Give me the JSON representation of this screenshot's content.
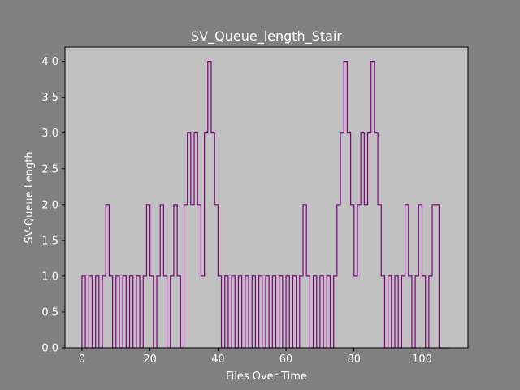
{
  "chart_data": {
    "type": "line",
    "drawstyle": "steps",
    "title": "SV_Queue_length_Stair",
    "xlabel": "Files Over Time",
    "ylabel": "SV-Queue Length",
    "xlim": [
      -5,
      113.5
    ],
    "ylim": [
      0,
      4.2
    ],
    "xticks": [
      0,
      20,
      40,
      60,
      80,
      100
    ],
    "xtick_labels": [
      "0",
      "20",
      "40",
      "60",
      "80",
      "100"
    ],
    "yticks": [
      0.0,
      0.5,
      1.0,
      1.5,
      2.0,
      2.5,
      3.0,
      3.5,
      4.0
    ],
    "ytick_labels": [
      "0.0",
      "0.5",
      "1.0",
      "1.5",
      "2.0",
      "2.5",
      "3.0",
      "3.5",
      "4.0"
    ],
    "grid": false,
    "series": [
      {
        "x": [
          0,
          1,
          2,
          3,
          4,
          5,
          6,
          7,
          8,
          9,
          10,
          11,
          12,
          13,
          14,
          15,
          16,
          17,
          18,
          19,
          20,
          21,
          22,
          23,
          24,
          25,
          26,
          27,
          28,
          29,
          30,
          31,
          32,
          33,
          34,
          35,
          36,
          37,
          38,
          39,
          40,
          41,
          42,
          43,
          44,
          45,
          46,
          47,
          48,
          49,
          50,
          51,
          52,
          53,
          54,
          55,
          56,
          57,
          58,
          59,
          60,
          61,
          62,
          63,
          64,
          65,
          66,
          67,
          68,
          69,
          70,
          71,
          72,
          73,
          74,
          75,
          76,
          77,
          78,
          79,
          80,
          81,
          82,
          83,
          84,
          85,
          86,
          87,
          88,
          89,
          90,
          91,
          92,
          93,
          94,
          95,
          96,
          97,
          98,
          99,
          100,
          101,
          102,
          103,
          104,
          105,
          106,
          107,
          108
        ],
        "values": [
          0,
          1,
          0,
          1,
          0,
          1,
          0,
          1,
          2,
          1,
          0,
          1,
          0,
          1,
          0,
          1,
          0,
          1,
          0,
          1,
          2,
          1,
          0,
          1,
          2,
          1,
          0,
          1,
          2,
          1,
          0,
          2,
          3,
          2,
          3,
          2,
          1,
          3,
          4,
          3,
          2,
          1,
          0,
          1,
          0,
          1,
          0,
          1,
          0,
          1,
          0,
          1,
          0,
          1,
          0,
          1,
          0,
          1,
          0,
          1,
          0,
          1,
          0,
          1,
          0,
          1,
          2,
          1,
          0,
          1,
          0,
          1,
          0,
          1,
          0,
          1,
          2,
          3,
          4,
          3,
          2,
          1,
          2,
          3,
          2,
          3,
          4,
          3,
          2,
          1,
          0,
          1,
          0,
          1,
          0,
          1,
          2,
          1,
          0,
          1,
          2,
          1,
          0,
          1,
          2,
          2,
          0,
          0,
          0
        ],
        "color": "#800080"
      }
    ],
    "colors": {
      "figure_background": "#808080",
      "axes_background": "#c0c0c0",
      "text": "#ffffff",
      "axis_line": "#000000"
    }
  }
}
